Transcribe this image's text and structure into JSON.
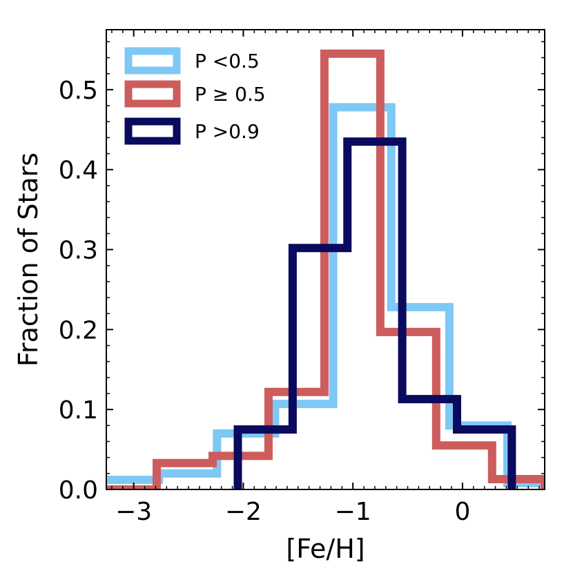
{
  "chart_data": {
    "type": "histogram",
    "xlabel": "[Fe/H]",
    "ylabel": "Fraction of Stars",
    "xlim": [
      -3.25,
      0.75
    ],
    "ylim": [
      0.0,
      0.575
    ],
    "x_ticks": [
      -3,
      -2,
      -1,
      0
    ],
    "x_tick_labels": [
      "−3",
      "−2",
      "−1",
      "0"
    ],
    "y_ticks": [
      0.0,
      0.1,
      0.2,
      0.3,
      0.4,
      0.5
    ],
    "y_tick_labels": [
      "0.0",
      "0.1",
      "0.2",
      "0.3",
      "0.4",
      "0.5"
    ],
    "legend_position": "upper-left",
    "series": [
      {
        "name": "P <0.5",
        "color": "#7ec8f5",
        "edges": [
          -3.3,
          -2.77,
          -2.24,
          -1.71,
          -1.18,
          -0.65,
          -0.12,
          0.41,
          0.75
        ],
        "values": [
          0.012,
          0.02,
          0.07,
          0.107,
          0.478,
          0.228,
          0.08,
          0.008
        ]
      },
      {
        "name": "P ≥ 0.5",
        "color": "#cd5c5c",
        "edges": [
          -3.3,
          -2.79,
          -2.28,
          -1.77,
          -1.26,
          -0.75,
          -0.24,
          0.27,
          0.75
        ],
        "values": [
          0.0,
          0.033,
          0.042,
          0.122,
          0.545,
          0.197,
          0.055,
          0.013
        ]
      },
      {
        "name": "P >0.9",
        "color": "#0a0a5e",
        "edges": [
          -2.05,
          -1.55,
          -1.05,
          -0.55,
          -0.05,
          0.45
        ],
        "values": [
          0.075,
          0.302,
          0.435,
          0.113,
          0.075
        ]
      }
    ]
  }
}
